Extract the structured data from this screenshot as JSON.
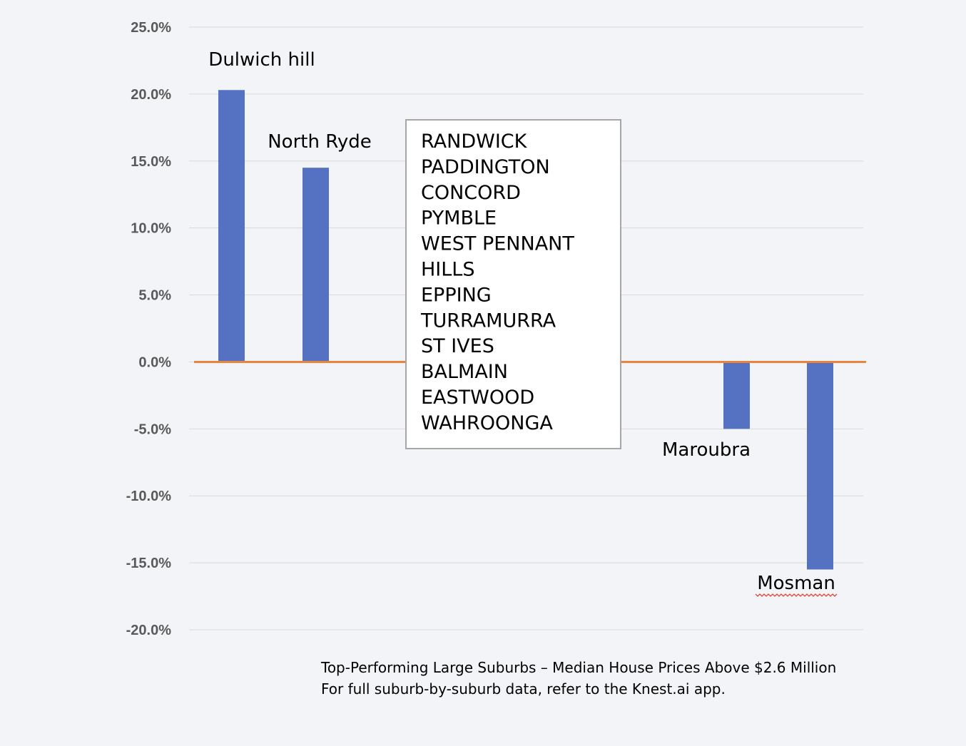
{
  "chart_data": {
    "type": "bar",
    "categories": [
      "Dulwich hill",
      "North Ryde",
      "Maroubra",
      "Mosman"
    ],
    "values": [
      20.3,
      14.5,
      -5.0,
      -15.5
    ],
    "ylim": [
      -20,
      25
    ],
    "yticks": [
      25,
      20,
      15,
      10,
      5,
      0,
      -5,
      -10,
      -15,
      -20
    ],
    "ytick_labels": [
      "25.0%",
      "20.0%",
      "15.0%",
      "10.0%",
      "5.0%",
      "0.0%",
      "-5.0%",
      "-10.0%",
      "-15.0%",
      "-20.0%"
    ],
    "grid": true,
    "bar_color": "#5571c2",
    "zero_line_color": "#e8843c",
    "grid_color": "#d9d9d9",
    "annotation_box": {
      "items": [
        "RANDWICK",
        "PADDINGTON",
        "CONCORD",
        "PYMBLE",
        "WEST PENNANT",
        "HILLS",
        "EPPING",
        "TURRAMURRA",
        "ST IVES",
        "BALMAIN",
        "EASTWOOD",
        "WAHROONGA"
      ]
    },
    "caption": {
      "line1": "Top-Performing Large Suburbs – Median House Prices Above $2.6 Million",
      "line2": "For full suburb-by-suburb data, refer to the Knest.ai app."
    }
  }
}
